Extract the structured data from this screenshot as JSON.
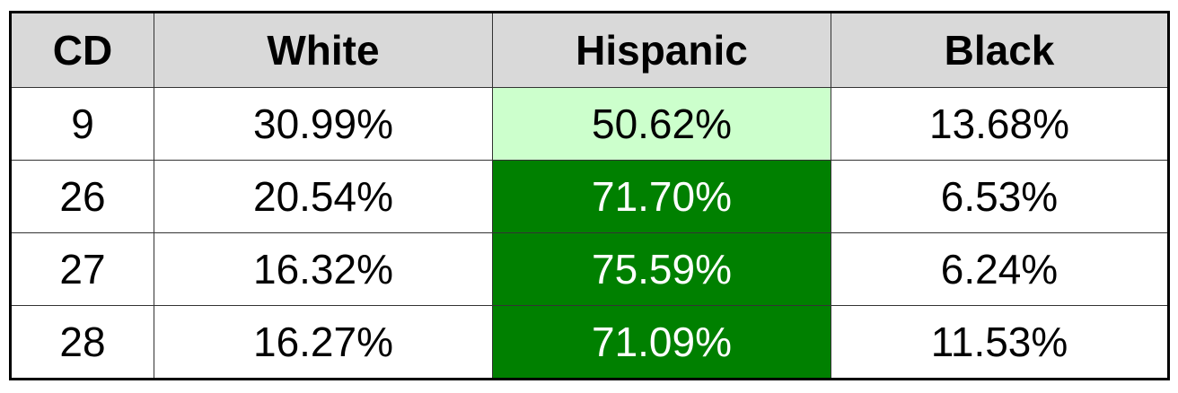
{
  "table": {
    "header": [
      "CD",
      "White",
      "Hispanic",
      "Black"
    ],
    "rows": [
      [
        "9",
        "30.99%",
        "50.62%",
        "13.68%"
      ],
      [
        "26",
        "20.54%",
        "71.70%",
        "6.53%"
      ],
      [
        "27",
        "16.32%",
        "75.59%",
        "6.24%"
      ],
      [
        "28",
        "16.27%",
        "71.09%",
        "11.53%"
      ]
    ]
  }
}
